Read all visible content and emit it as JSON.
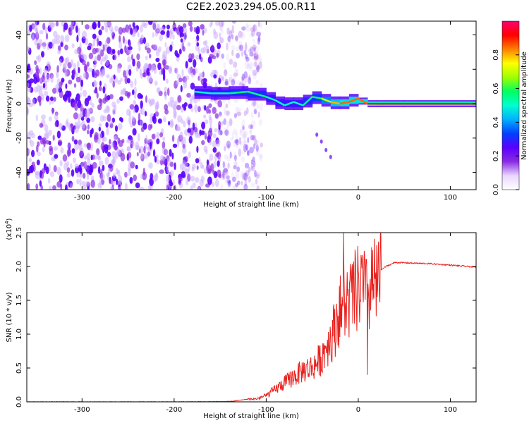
{
  "title": "C2E2.2023.294.05.00.R11",
  "colorbar": {
    "label": "Normalized spectral amplitude",
    "ticks": [
      "0.0",
      "0.2",
      "0.4",
      "0.6",
      "0.8"
    ],
    "tick_values": [
      0.0,
      0.2,
      0.4,
      0.6,
      0.8
    ],
    "colors": [
      "#ffffff",
      "#e9d6ff",
      "#8a2be2",
      "#5a00ff",
      "#0040ff",
      "#00b0ff",
      "#00ffd0",
      "#00ff60",
      "#a0ff00",
      "#ffff00",
      "#ff8000",
      "#ff0000",
      "#ff0070"
    ]
  },
  "chart_data": [
    {
      "type": "heatmap",
      "xlabel": "Height of straight line (km)",
      "ylabel": "Frequency (Hz)",
      "xlim": [
        -360,
        128
      ],
      "ylim": [
        -50,
        48
      ],
      "x_ticks": [
        -300,
        -200,
        -100,
        0,
        100
      ],
      "y_ticks": [
        -40,
        -20,
        0,
        20,
        40
      ],
      "x_tick_labels": [
        "-300",
        "-200",
        "-100",
        "0",
        "100"
      ],
      "y_tick_labels": [
        "-40",
        "-20",
        "0",
        "20",
        "40"
      ],
      "noise_region_x": [
        -360,
        -120
      ],
      "signal_ridge": {
        "x": [
          -178,
          -160,
          -140,
          -120,
          -100,
          -90,
          -80,
          -70,
          -60,
          -50,
          -40,
          -30,
          -20,
          -10,
          0,
          10,
          20,
          50,
          80,
          128
        ],
        "y": [
          7,
          6,
          6,
          7,
          4,
          2,
          -1,
          1,
          -1,
          4,
          3,
          1,
          0,
          1,
          3,
          0,
          0,
          0,
          0,
          0
        ],
        "amplitude": [
          0.5,
          0.5,
          0.55,
          0.55,
          0.5,
          0.5,
          0.5,
          0.5,
          0.55,
          0.6,
          0.7,
          0.8,
          0.85,
          0.85,
          0.85,
          0.9,
          0.95,
          0.95,
          0.95,
          0.95
        ]
      },
      "side_branch": {
        "x": [
          -45,
          -40,
          -35,
          -30
        ],
        "y": [
          -18,
          -22,
          -27,
          -31
        ]
      }
    },
    {
      "type": "line",
      "xlabel": "Height of straight line (km)",
      "ylabel": "SNR (10 * v/v)",
      "scale_label": "(x10",
      "scale_exp": "4",
      "scale_close": ")",
      "xlim": [
        -360,
        128
      ],
      "ylim": [
        0,
        2.5
      ],
      "x_ticks": [
        -300,
        -200,
        -100,
        0,
        100
      ],
      "y_ticks": [
        0.0,
        0.5,
        1.0,
        1.5,
        2.0,
        2.5
      ],
      "x_tick_labels": [
        "-300",
        "-200",
        "-100",
        "0",
        "100"
      ],
      "y_tick_labels": [
        "0.0",
        "0.5",
        "1.0",
        "1.5",
        "2.0",
        "2.5"
      ],
      "line_color": "#e8201c",
      "series": [
        {
          "x": [
            -360,
            -300,
            -200,
            -140,
            -130,
            -120,
            -110,
            -100,
            -90,
            -80,
            -70,
            -60,
            -50,
            -40,
            -35,
            -30,
            -25,
            -22,
            -18,
            -15,
            -10,
            -5,
            0,
            5,
            10,
            15,
            20,
            25,
            30,
            40,
            60,
            80,
            100,
            128
          ],
          "y": [
            0.0,
            0.0,
            0.0,
            0.005,
            0.02,
            0.04,
            0.05,
            0.1,
            0.2,
            0.3,
            0.4,
            0.5,
            0.55,
            0.7,
            0.9,
            1.0,
            1.2,
            1.4,
            1.5,
            1.55,
            1.6,
            1.7,
            1.8,
            1.85,
            1.6,
            1.9,
            1.85,
            1.95,
            2.0,
            2.06,
            2.05,
            2.04,
            2.02,
            1.99
          ]
        }
      ],
      "spike": {
        "x": -16,
        "y": 2.5
      },
      "dip": {
        "x": 10,
        "y": 0.4
      }
    }
  ]
}
